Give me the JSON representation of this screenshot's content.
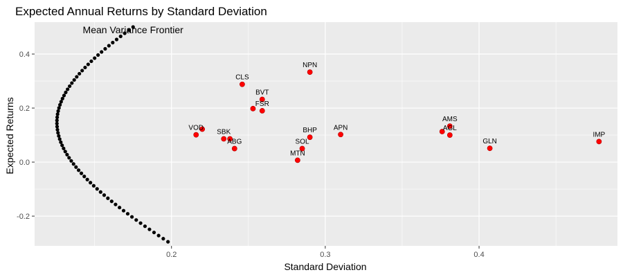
{
  "chart_data": {
    "type": "scatter",
    "title": "Expected Annual Returns by Standard Deviation",
    "xlabel": "Standard Deviation",
    "ylabel": "Expected Returns",
    "xlim": [
      0.111,
      0.49
    ],
    "ylim": [
      -0.31,
      0.518
    ],
    "x_ticks": [
      0.2,
      0.3,
      0.4
    ],
    "x_tick_labels": [
      "0.2",
      "0.3",
      "0.4"
    ],
    "y_ticks": [
      -0.2,
      0.0,
      0.2,
      0.4
    ],
    "y_tick_labels": [
      "-0.2",
      "0.0",
      "0.2",
      "0.4"
    ],
    "x_minor_ticks": [
      0.15,
      0.25,
      0.35,
      0.45
    ],
    "y_minor_ticks": [
      -0.1,
      0.1,
      0.3
    ],
    "grid": true,
    "annotations": [
      {
        "text": "Mean Variance Frontier",
        "x": 0.175,
        "y": 0.49
      }
    ],
    "frontier": {
      "color": "#000000",
      "min_variance_x": 0.1255,
      "min_variance_y": 0.147,
      "curvature": 8.7,
      "y_start": -0.295,
      "y_end": 0.5,
      "n_points": 70
    },
    "series": [
      {
        "color": "#ff0000",
        "points": [
          {
            "label": "NPN",
            "x": 0.29,
            "y": 0.333
          },
          {
            "label": "CLS",
            "x": 0.246,
            "y": 0.288
          },
          {
            "label": "BVT",
            "x": 0.259,
            "y": 0.232
          },
          {
            "label": "FSR",
            "x": 0.259,
            "y": 0.19
          },
          {
            "label": "",
            "x": 0.253,
            "y": 0.198
          },
          {
            "label": "VOD",
            "x": 0.216,
            "y": 0.101
          },
          {
            "label": "",
            "x": 0.22,
            "y": 0.122
          },
          {
            "label": "SBK",
            "x": 0.234,
            "y": 0.086
          },
          {
            "label": "",
            "x": 0.238,
            "y": 0.086
          },
          {
            "label": "ABG",
            "x": 0.241,
            "y": 0.05
          },
          {
            "label": "BHP",
            "x": 0.29,
            "y": 0.092
          },
          {
            "label": "SOL",
            "x": 0.285,
            "y": 0.05
          },
          {
            "label": "MTN",
            "x": 0.282,
            "y": 0.007
          },
          {
            "label": "APN",
            "x": 0.31,
            "y": 0.102
          },
          {
            "label": "AMS",
            "x": 0.381,
            "y": 0.133
          },
          {
            "label": "AGL",
            "x": 0.381,
            "y": 0.1
          },
          {
            "label": "",
            "x": 0.376,
            "y": 0.113
          },
          {
            "label": "GLN",
            "x": 0.407,
            "y": 0.051
          },
          {
            "label": "IMP",
            "x": 0.478,
            "y": 0.076
          }
        ]
      }
    ]
  }
}
